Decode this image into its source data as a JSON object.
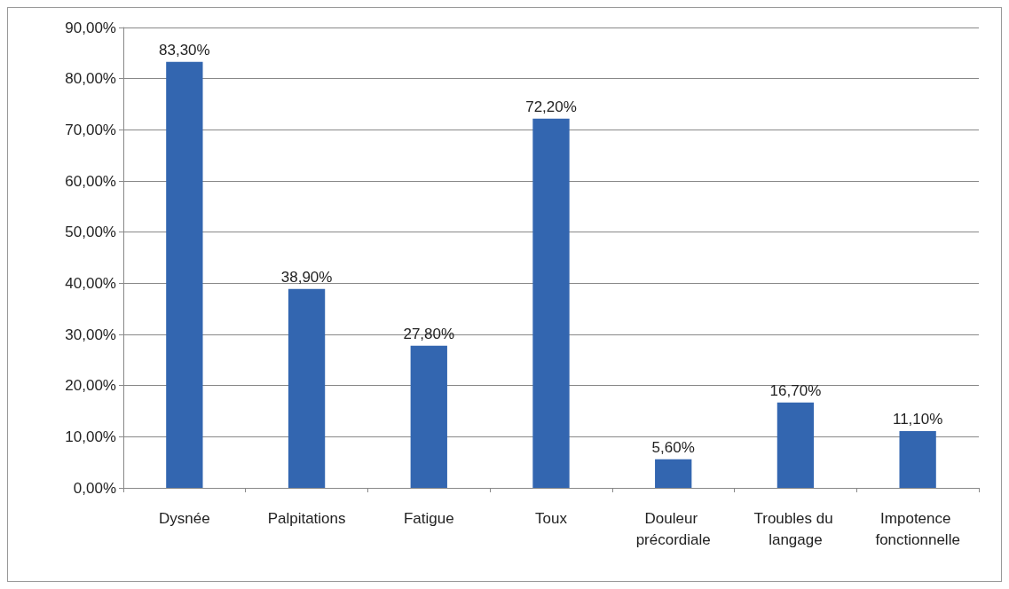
{
  "chart_data": {
    "type": "bar",
    "categories": [
      "Dysnée",
      "Palpitations",
      "Fatigue",
      "Toux",
      "Douleur précordiale",
      "Troubles du langage",
      "Impotence fonctionnelle"
    ],
    "values": [
      83.3,
      38.9,
      27.8,
      72.2,
      5.6,
      16.7,
      11.1
    ],
    "value_labels": [
      "83,30%",
      "38,90%",
      "27,80%",
      "72,20%",
      "5,60%",
      "16,70%",
      "11,10%"
    ],
    "color": "#3366b0",
    "ylim": [
      0,
      90
    ],
    "yticks": [
      {
        "value": 0,
        "label": "0,00%"
      },
      {
        "value": 10,
        "label": "10,00%"
      },
      {
        "value": 20,
        "label": "20,00%"
      },
      {
        "value": 30,
        "label": "30,00%"
      },
      {
        "value": 40,
        "label": "40,00%"
      },
      {
        "value": 50,
        "label": "50,00%"
      },
      {
        "value": 60,
        "label": "60,00%"
      },
      {
        "value": 70,
        "label": "70,00%"
      },
      {
        "value": 80,
        "label": "80,00%"
      },
      {
        "value": 90,
        "label": "90,00%"
      }
    ],
    "grid": "y"
  }
}
